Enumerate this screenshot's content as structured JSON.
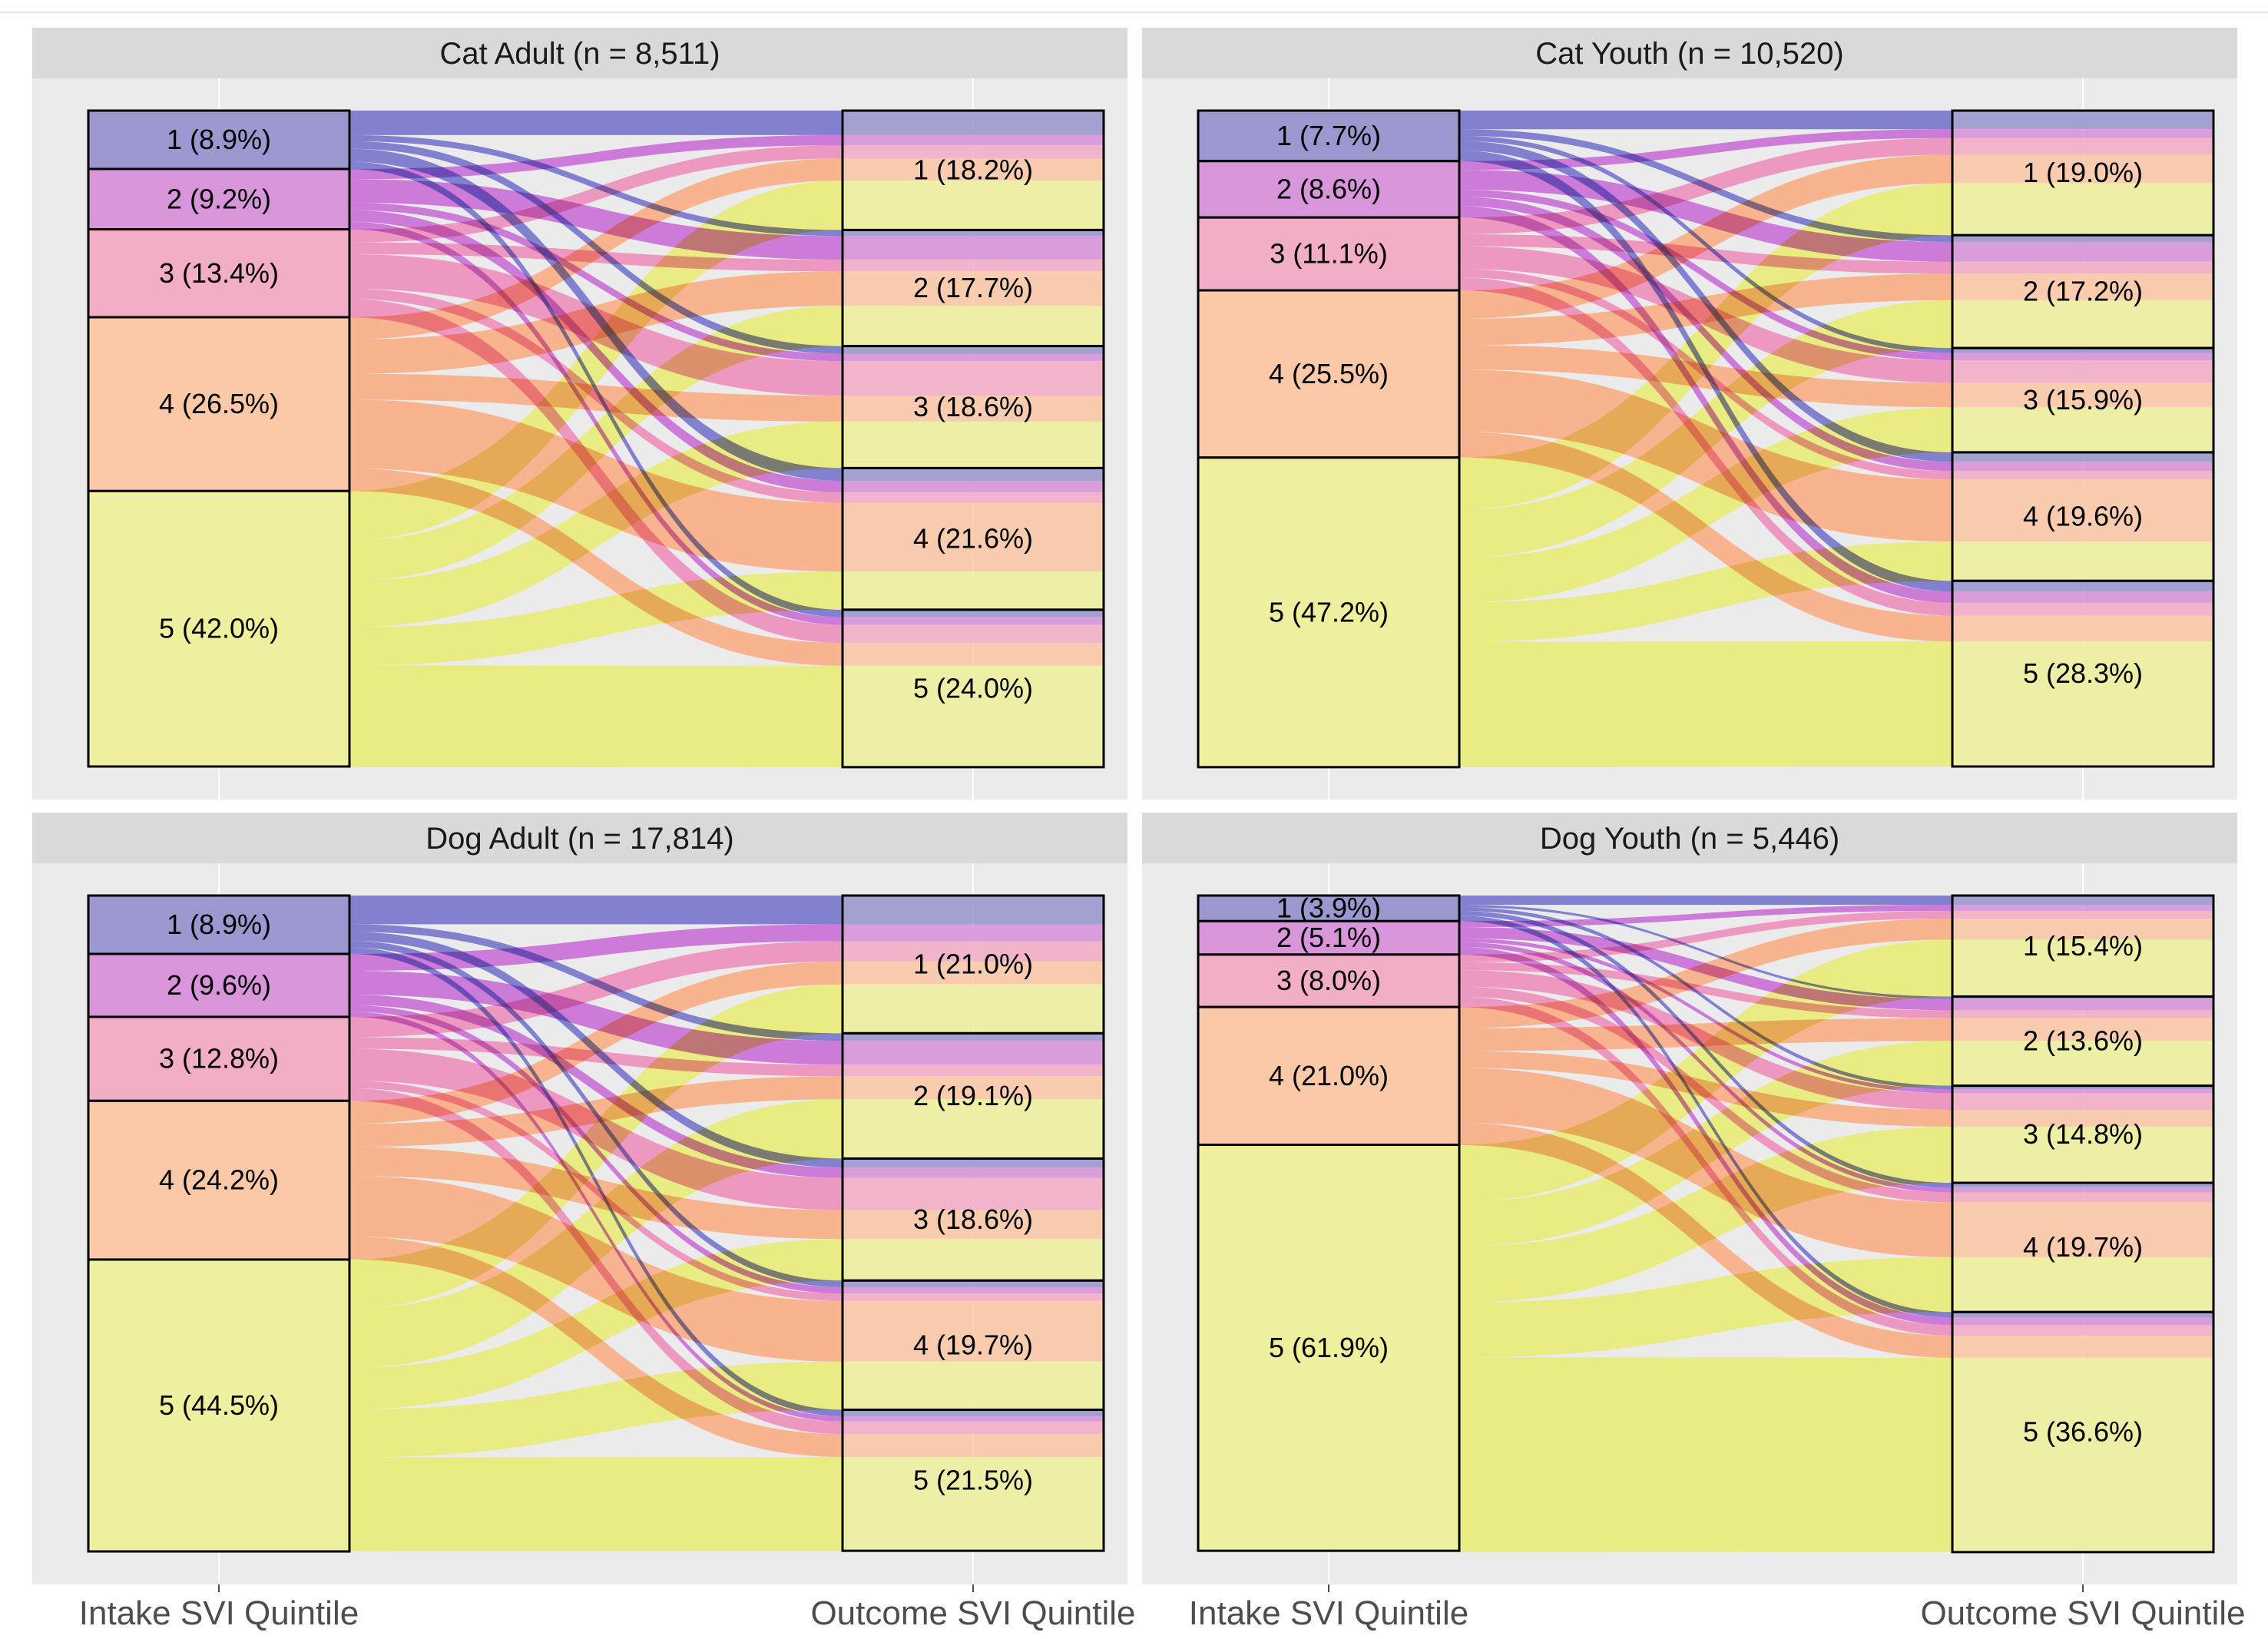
{
  "chart_data": {
    "type": "alluvial",
    "axis_labels": [
      "Intake SVI Quintile",
      "Outcome SVI Quintile"
    ],
    "colors": {
      "1": "#9b98cf",
      "2": "#d895d9",
      "3": "#f2aec7",
      "4": "#fbc9a8",
      "5": "#eef09e"
    },
    "flow_colors": {
      "1": "#6a6acb",
      "2": "#c663d6",
      "3": "#ee87b8",
      "4": "#fba87c",
      "5": "#e9ec6d"
    },
    "panels": [
      {
        "title": "Cat Adult (n = 8,511)",
        "intake": [
          {
            "q": "1",
            "pct": 8.9,
            "label": "1  (8.9%)"
          },
          {
            "q": "2",
            "pct": 9.2,
            "label": "2  (9.2%)"
          },
          {
            "q": "3",
            "pct": 13.4,
            "label": "3 (13.4%)"
          },
          {
            "q": "4",
            "pct": 26.5,
            "label": "4  (26.5%)"
          },
          {
            "q": "5",
            "pct": 42.0,
            "label": "5 (42.0%)"
          }
        ],
        "outcome": [
          {
            "q": "1",
            "pct": 18.2,
            "label": "1  (18.2%)"
          },
          {
            "q": "2",
            "pct": 17.7,
            "label": "2  (17.7%)"
          },
          {
            "q": "3",
            "pct": 18.6,
            "label": "3  (18.6%)"
          },
          {
            "q": "4",
            "pct": 21.6,
            "label": "4  (21.6%)"
          },
          {
            "q": "5",
            "pct": 24.0,
            "label": "5  (24.0%)"
          }
        ]
      },
      {
        "title": "Cat Youth (n = 10,520)",
        "intake": [
          {
            "q": "1",
            "pct": 7.7,
            "label": "1  (7.7%)"
          },
          {
            "q": "2",
            "pct": 8.6,
            "label": "2  (8.6%)"
          },
          {
            "q": "3",
            "pct": 11.1,
            "label": "3  (11.1%)"
          },
          {
            "q": "4",
            "pct": 25.5,
            "label": "4  (25.5%)"
          },
          {
            "q": "5",
            "pct": 47.2,
            "label": "5  (47.2%)"
          }
        ],
        "outcome": [
          {
            "q": "1",
            "pct": 19.0,
            "label": "1  (19.0%)"
          },
          {
            "q": "2",
            "pct": 17.2,
            "label": "2  (17.2%)"
          },
          {
            "q": "3",
            "pct": 15.9,
            "label": "3  (15.9%)"
          },
          {
            "q": "4",
            "pct": 19.6,
            "label": "4  (19.6%)"
          },
          {
            "q": "5",
            "pct": 28.3,
            "label": "5  (28.3%)"
          }
        ]
      },
      {
        "title": "Dog Adult (n = 17,814)",
        "intake": [
          {
            "q": "1",
            "pct": 8.9,
            "label": "1  (8.9%)"
          },
          {
            "q": "2",
            "pct": 9.6,
            "label": "2  (9.6%)"
          },
          {
            "q": "3",
            "pct": 12.8,
            "label": "3  (12.8%)"
          },
          {
            "q": "4",
            "pct": 24.2,
            "label": "4  (24.2%)"
          },
          {
            "q": "5",
            "pct": 44.5,
            "label": "5  (44.5%)"
          }
        ],
        "outcome": [
          {
            "q": "1",
            "pct": 21.0,
            "label": "1  (21.0%)"
          },
          {
            "q": "2",
            "pct": 19.1,
            "label": "2  (19.1%)"
          },
          {
            "q": "3",
            "pct": 18.6,
            "label": "3  (18.6%)"
          },
          {
            "q": "4",
            "pct": 19.7,
            "label": "4  (19.7%)"
          },
          {
            "q": "5",
            "pct": 21.5,
            "label": "5  (21.5%)"
          }
        ]
      },
      {
        "title": "Dog Youth (n = 5,446)",
        "intake": [
          {
            "q": "1",
            "pct": 3.9,
            "label": "1  (3.9%)"
          },
          {
            "q": "2",
            "pct": 5.1,
            "label": "2  (5.1%)"
          },
          {
            "q": "3",
            "pct": 8.0,
            "label": "3  (8.0%)"
          },
          {
            "q": "4",
            "pct": 21.0,
            "label": "4  (21.0%)"
          },
          {
            "q": "5",
            "pct": 61.9,
            "label": "5  (61.9%)"
          }
        ],
        "outcome": [
          {
            "q": "1",
            "pct": 15.4,
            "label": "1  (15.4%)"
          },
          {
            "q": "2",
            "pct": 13.6,
            "label": "2  (13.6%)"
          },
          {
            "q": "3",
            "pct": 14.8,
            "label": "3  (14.8%)"
          },
          {
            "q": "4",
            "pct": 19.7,
            "label": "4  (19.7%)"
          },
          {
            "q": "5",
            "pct": 36.6,
            "label": "5  (36.6%)"
          }
        ]
      }
    ]
  }
}
